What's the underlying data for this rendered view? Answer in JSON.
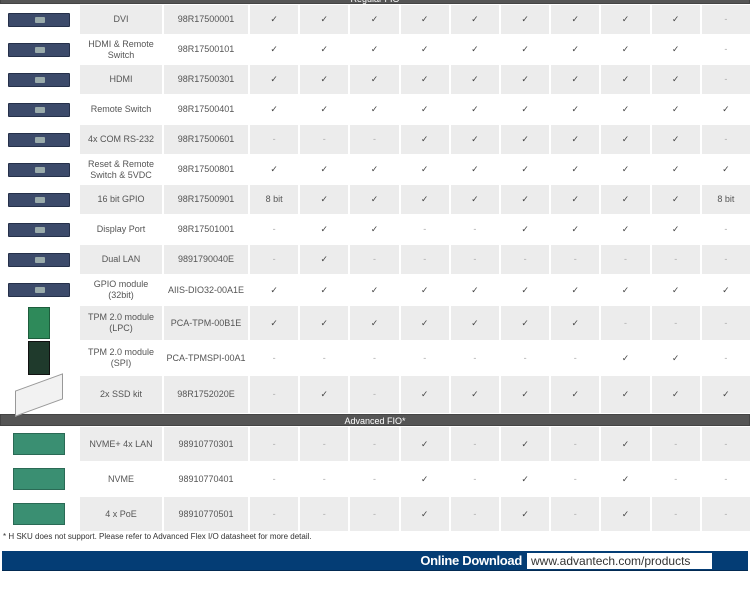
{
  "sections": [
    {
      "title": "Regular FIO",
      "rows": [
        {
          "icon": "dvi-board",
          "name": "DVI",
          "part": "98R17500001",
          "cells": [
            "✓",
            "✓",
            "✓",
            "✓",
            "✓",
            "✓",
            "✓",
            "✓",
            "✓",
            "-"
          ]
        },
        {
          "icon": "hdmi-remote-board",
          "name": "HDMI & Remote Switch",
          "part": "98R17500101",
          "cells": [
            "✓",
            "✓",
            "✓",
            "✓",
            "✓",
            "✓",
            "✓",
            "✓",
            "✓",
            "-"
          ]
        },
        {
          "icon": "hdmi-board",
          "name": "HDMI",
          "part": "98R17500301",
          "cells": [
            "✓",
            "✓",
            "✓",
            "✓",
            "✓",
            "✓",
            "✓",
            "✓",
            "✓",
            "-"
          ]
        },
        {
          "icon": "remote-switch-board",
          "name": "Remote Switch",
          "part": "98R17500401",
          "cells": [
            "✓",
            "✓",
            "✓",
            "✓",
            "✓",
            "✓",
            "✓",
            "✓",
            "✓",
            "✓"
          ]
        },
        {
          "icon": "com-board",
          "name": "4x COM RS-232",
          "part": "98R17500601",
          "cells": [
            "-",
            "-",
            "-",
            "✓",
            "✓",
            "✓",
            "✓",
            "✓",
            "✓",
            "-"
          ]
        },
        {
          "icon": "reset-board",
          "name": "Reset & Remote Switch & 5VDC",
          "part": "98R17500801",
          "cells": [
            "✓",
            "✓",
            "✓",
            "✓",
            "✓",
            "✓",
            "✓",
            "✓",
            "✓",
            "✓"
          ]
        },
        {
          "icon": "gpio-board",
          "name": "16 bit GPIO",
          "part": "98R17500901",
          "cells": [
            "8 bit",
            "✓",
            "✓",
            "✓",
            "✓",
            "✓",
            "✓",
            "✓",
            "✓",
            "8 bit"
          ]
        },
        {
          "icon": "displayport-board",
          "name": "Display Port",
          "part": "98R17501001",
          "cells": [
            "-",
            "✓",
            "✓",
            "-",
            "-",
            "✓",
            "✓",
            "✓",
            "✓",
            "-"
          ]
        },
        {
          "icon": "dual-lan-board",
          "name": "Dual LAN",
          "part": "9891790040E",
          "cells": [
            "-",
            "✓",
            "-",
            "-",
            "-",
            "-",
            "-",
            "-",
            "-",
            "-"
          ]
        },
        {
          "icon": "gpio-module-board",
          "name": "GPIO module (32bit)",
          "part": "AIIS-DIO32-00A1E",
          "cells": [
            "✓",
            "✓",
            "✓",
            "✓",
            "✓",
            "✓",
            "✓",
            "✓",
            "✓",
            "✓"
          ]
        },
        {
          "icon": "tpm-lpc-module",
          "name": "TPM 2.0 module (LPC)",
          "part": "PCA-TPM-00B1E",
          "cells": [
            "✓",
            "✓",
            "✓",
            "✓",
            "✓",
            "✓",
            "✓",
            "-",
            "-",
            "-"
          ]
        },
        {
          "icon": "tpm-spi-module",
          "name": "TPM 2.0 module (SPI)",
          "part": "PCA-TPMSPI-00A1",
          "cells": [
            "-",
            "-",
            "-",
            "-",
            "-",
            "-",
            "-",
            "✓",
            "✓",
            "-"
          ]
        },
        {
          "icon": "ssd-kit",
          "name": "2x SSD kit",
          "part": "98R1752020E",
          "cells": [
            "-",
            "✓",
            "-",
            "✓",
            "✓",
            "✓",
            "✓",
            "✓",
            "✓",
            "✓"
          ]
        }
      ]
    },
    {
      "title": "Advanced FIO*",
      "rows": [
        {
          "icon": "nvme-lan-board",
          "name": "NVME+ 4x LAN",
          "part": "98910770301",
          "cells": [
            "-",
            "-",
            "-",
            "✓",
            "-",
            "✓",
            "-",
            "✓",
            "-",
            "-"
          ]
        },
        {
          "icon": "nvme-board",
          "name": "NVME",
          "part": "98910770401",
          "cells": [
            "-",
            "-",
            "-",
            "✓",
            "-",
            "✓",
            "-",
            "✓",
            "-",
            "-"
          ]
        },
        {
          "icon": "poe-board",
          "name": "4 x PoE",
          "part": "98910770501",
          "cells": [
            "-",
            "-",
            "-",
            "✓",
            "-",
            "✓",
            "-",
            "✓",
            "-",
            "-"
          ]
        }
      ]
    }
  ],
  "footnote": "* H SKU does not support. Please refer to Advanced Flex I/O datasheet for more detail.",
  "download": {
    "label": "Online Download",
    "url": "www.advantech.com/products"
  },
  "colors": {
    "section_bar": "#555555",
    "download_bar": "#043d75",
    "row_alt": "#ececec"
  }
}
